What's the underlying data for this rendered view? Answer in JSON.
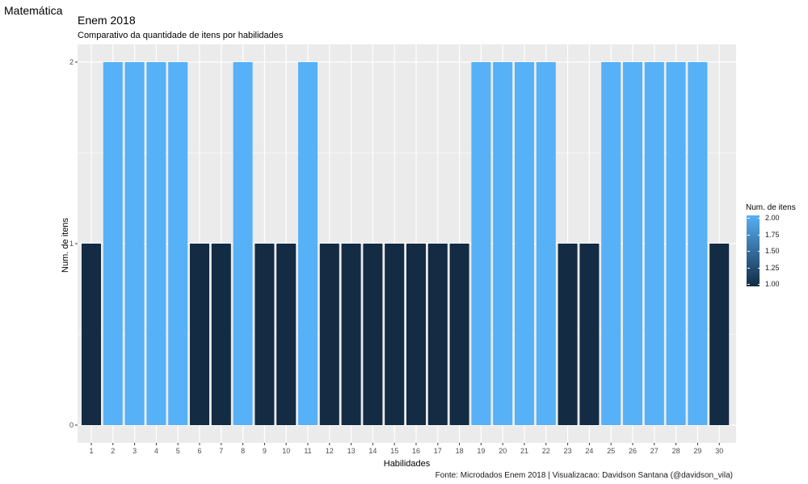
{
  "window_title": "Matemática",
  "colors": {
    "low": "#132B43",
    "high": "#56B1F7",
    "panel": "#EBEBEB",
    "grid": "#FFFFFF"
  },
  "chart_data": {
    "type": "bar",
    "title": "Enem 2018",
    "subtitle": "Comparativo da quantidade de itens por habilidades",
    "xlabel": "Habilidades",
    "ylabel": "Num. de itens",
    "caption": "Fonte: Microdados Enem 2018 | Visualizacao: Davidson Santana (@davidson_vila)",
    "categories": [
      "1",
      "2",
      "3",
      "4",
      "5",
      "6",
      "7",
      "8",
      "9",
      "10",
      "11",
      "12",
      "13",
      "14",
      "15",
      "16",
      "17",
      "18",
      "19",
      "20",
      "21",
      "22",
      "23",
      "24",
      "25",
      "26",
      "27",
      "28",
      "29",
      "30"
    ],
    "values": [
      1,
      2,
      2,
      2,
      2,
      1,
      1,
      2,
      1,
      1,
      2,
      1,
      1,
      1,
      1,
      1,
      1,
      1,
      2,
      2,
      2,
      2,
      1,
      1,
      2,
      2,
      2,
      2,
      2,
      1
    ],
    "y_ticks": [
      "0",
      "1",
      "2"
    ],
    "ylim": [
      0,
      2
    ],
    "grid": true,
    "legend": {
      "title": "Num. de itens",
      "position": "right",
      "ticks": [
        "2.00",
        "1.75",
        "1.50",
        "1.25",
        "1.00"
      ]
    }
  }
}
